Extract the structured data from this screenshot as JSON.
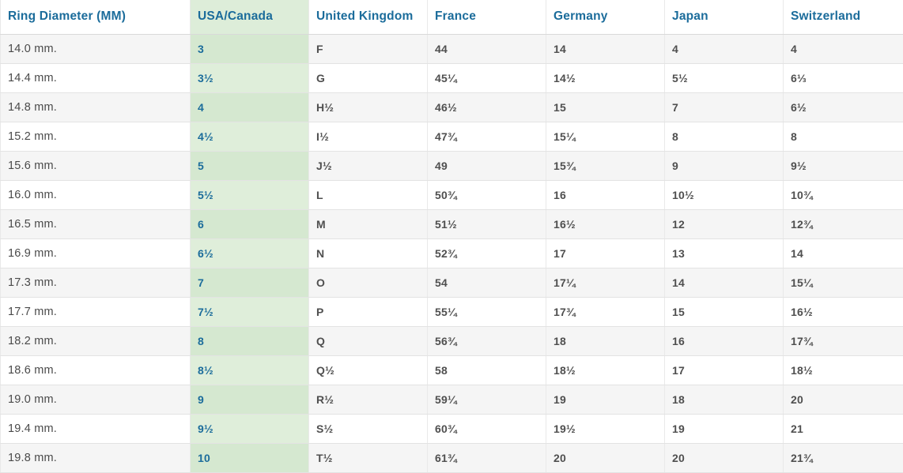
{
  "colors": {
    "header_text_blue": "#1b6c9b",
    "usa_column_text_blue": "#1b6c9b",
    "usa_column_green_header": "#ddedd9",
    "usa_column_green_light": "#dfeeda",
    "usa_column_green_dark": "#d5e8d0",
    "row_stripe_gray": "#f5f5f5",
    "row_white": "#ffffff",
    "cell_text_gray": "#4f4f4f",
    "border_gray": "#e3e3e3"
  },
  "table": {
    "column_keys": [
      "ring-diameter-mm",
      "usa-canada",
      "united-kingdom",
      "france",
      "germany",
      "japan",
      "switzerland"
    ],
    "headers": [
      "Ring Diameter (MM)",
      "USA/Canada",
      "United Kingdom",
      "France",
      "Germany",
      "Japan",
      "Switzerland"
    ],
    "rows": [
      [
        "14.0 mm.",
        "3",
        "F",
        "44",
        "14",
        "4",
        "4"
      ],
      [
        "14.4 mm.",
        "3½",
        "G",
        "45¼",
        "14½",
        "5½",
        "6⅓"
      ],
      [
        "14.8 mm.",
        "4",
        "H½",
        "46½",
        "15",
        "7",
        "6½"
      ],
      [
        "15.2 mm.",
        "4½",
        "I½",
        "47¾",
        "15¼",
        "8",
        "8"
      ],
      [
        "15.6 mm.",
        "5",
        "J½",
        "49",
        "15¾",
        "9",
        "9½"
      ],
      [
        "16.0 mm.",
        "5½",
        "L",
        "50¾",
        "16",
        "10½",
        "10¾"
      ],
      [
        "16.5 mm.",
        "6",
        "M",
        "51½",
        "16½",
        "12",
        "12¾"
      ],
      [
        "16.9 mm.",
        "6½",
        "N",
        "52¾",
        "17",
        "13",
        "14"
      ],
      [
        "17.3 mm.",
        "7",
        "O",
        "54",
        "17¼",
        "14",
        "15¼"
      ],
      [
        "17.7 mm.",
        "7½",
        "P",
        "55¼",
        "17¾",
        "15",
        "16½"
      ],
      [
        "18.2 mm.",
        "8",
        "Q",
        "56¾",
        "18",
        "16",
        "17¾"
      ],
      [
        "18.6 mm.",
        "8½",
        "Q½",
        "58",
        "18½",
        "17",
        "18½"
      ],
      [
        "19.0 mm.",
        "9",
        "R½",
        "59¼",
        "19",
        "18",
        "20"
      ],
      [
        "19.4 mm.",
        "9½",
        "S½",
        "60¾",
        "19½",
        "19",
        "21"
      ],
      [
        "19.8 mm.",
        "10",
        "T½",
        "61¾",
        "20",
        "20",
        "21¾"
      ]
    ]
  },
  "chart_data": {
    "type": "table",
    "columns": [
      "Ring Diameter (MM)",
      "USA/Canada",
      "United Kingdom",
      "France",
      "Germany",
      "Japan",
      "Switzerland"
    ],
    "rows": [
      [
        "14.0 mm.",
        "3",
        "F",
        "44",
        "14",
        "4",
        "4"
      ],
      [
        "14.4 mm.",
        "3½",
        "G",
        "45¼",
        "14½",
        "5½",
        "6⅓"
      ],
      [
        "14.8 mm.",
        "4",
        "H½",
        "46½",
        "15",
        "7",
        "6½"
      ],
      [
        "15.2 mm.",
        "4½",
        "I½",
        "47¾",
        "15¼",
        "8",
        "8"
      ],
      [
        "15.6 mm.",
        "5",
        "J½",
        "49",
        "15¾",
        "9",
        "9½"
      ],
      [
        "16.0 mm.",
        "5½",
        "L",
        "50¾",
        "16",
        "10½",
        "10¾"
      ],
      [
        "16.5 mm.",
        "6",
        "M",
        "51½",
        "16½",
        "12",
        "12¾"
      ],
      [
        "16.9 mm.",
        "6½",
        "N",
        "52¾",
        "17",
        "13",
        "14"
      ],
      [
        "17.3 mm.",
        "7",
        "O",
        "54",
        "17¼",
        "14",
        "15¼"
      ],
      [
        "17.7 mm.",
        "7½",
        "P",
        "55¼",
        "17¾",
        "15",
        "16½"
      ],
      [
        "18.2 mm.",
        "8",
        "Q",
        "56¾",
        "18",
        "16",
        "17¾"
      ],
      [
        "18.6 mm.",
        "8½",
        "Q½",
        "58",
        "18½",
        "17",
        "18½"
      ],
      [
        "19.0 mm.",
        "9",
        "R½",
        "59¼",
        "19",
        "18",
        "20"
      ],
      [
        "19.4 mm.",
        "9½",
        "S½",
        "60¾",
        "19½",
        "19",
        "21"
      ],
      [
        "19.8 mm.",
        "10",
        "T½",
        "61¾",
        "20",
        "20",
        "21¾"
      ]
    ],
    "highlighted_column": "USA/Canada",
    "layout": "striped rows, first column row labels, second column green highlight"
  }
}
